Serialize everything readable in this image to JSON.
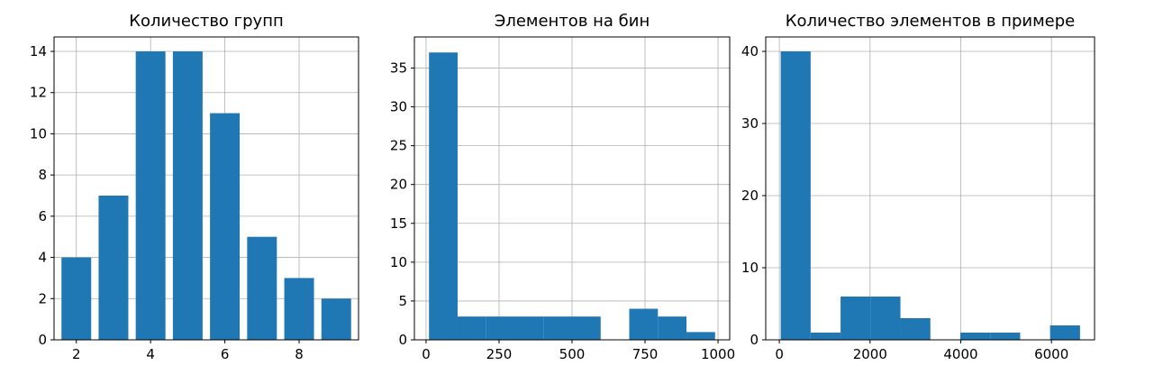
{
  "style": {
    "bar_color": "#1f77b4",
    "grid_color": "#b0b0b0",
    "axis_color": "#000000"
  },
  "chart_data": [
    {
      "type": "bar",
      "title": "Количество групп",
      "grid": true,
      "xlim": [
        1.4,
        9.6
      ],
      "ylim": [
        0,
        14.7
      ],
      "xticks": [
        2,
        4,
        6,
        8
      ],
      "xtick_labels": [
        "2",
        "4",
        "6",
        "8"
      ],
      "yticks": [
        0,
        2,
        4,
        6,
        8,
        10,
        12,
        14
      ],
      "ytick_labels": [
        "0",
        "2",
        "4",
        "6",
        "8",
        "10",
        "12",
        "14"
      ],
      "bars": [
        {
          "x": 2,
          "value": 4
        },
        {
          "x": 3,
          "value": 7
        },
        {
          "x": 4,
          "value": 14
        },
        {
          "x": 5,
          "value": 14
        },
        {
          "x": 6,
          "value": 11
        },
        {
          "x": 7,
          "value": 5
        },
        {
          "x": 8,
          "value": 3
        },
        {
          "x": 9,
          "value": 2
        }
      ],
      "bar_width": 0.8
    },
    {
      "type": "bar",
      "title": "Элементов на бин",
      "grid": true,
      "xlim": [
        -40,
        1040
      ],
      "ylim": [
        0,
        39
      ],
      "xticks": [
        0,
        250,
        500,
        750,
        1000
      ],
      "xtick_labels": [
        "0",
        "250",
        "500",
        "750",
        "1000"
      ],
      "yticks": [
        0,
        5,
        10,
        15,
        20,
        25,
        30,
        35
      ],
      "ytick_labels": [
        "0",
        "5",
        "10",
        "15",
        "20",
        "25",
        "30",
        "35"
      ],
      "bins": [
        {
          "start": 10,
          "end": 108,
          "value": 37
        },
        {
          "start": 108,
          "end": 206,
          "value": 3
        },
        {
          "start": 206,
          "end": 304,
          "value": 3
        },
        {
          "start": 304,
          "end": 402,
          "value": 3
        },
        {
          "start": 402,
          "end": 500,
          "value": 3
        },
        {
          "start": 500,
          "end": 598,
          "value": 3
        },
        {
          "start": 598,
          "end": 696,
          "value": 0
        },
        {
          "start": 696,
          "end": 794,
          "value": 4
        },
        {
          "start": 794,
          "end": 892,
          "value": 3
        },
        {
          "start": 892,
          "end": 990,
          "value": 1
        }
      ]
    },
    {
      "type": "bar",
      "title": "Количество элементов в примере",
      "grid": true,
      "xlim": [
        -300,
        6950
      ],
      "ylim": [
        0,
        42
      ],
      "xticks": [
        0,
        2000,
        4000,
        6000
      ],
      "xtick_labels": [
        "0",
        "2000",
        "4000",
        "6000"
      ],
      "yticks": [
        0,
        10,
        20,
        30,
        40
      ],
      "ytick_labels": [
        "0",
        "10",
        "20",
        "30",
        "40"
      ],
      "bins": [
        {
          "start": 30,
          "end": 690,
          "value": 40
        },
        {
          "start": 690,
          "end": 1350,
          "value": 1
        },
        {
          "start": 1350,
          "end": 2010,
          "value": 6
        },
        {
          "start": 2010,
          "end": 2670,
          "value": 6
        },
        {
          "start": 2670,
          "end": 3330,
          "value": 3
        },
        {
          "start": 3330,
          "end": 3990,
          "value": 0
        },
        {
          "start": 3990,
          "end": 4650,
          "value": 1
        },
        {
          "start": 4650,
          "end": 5310,
          "value": 1
        },
        {
          "start": 5310,
          "end": 5970,
          "value": 0
        },
        {
          "start": 5970,
          "end": 6630,
          "value": 2
        }
      ]
    }
  ]
}
